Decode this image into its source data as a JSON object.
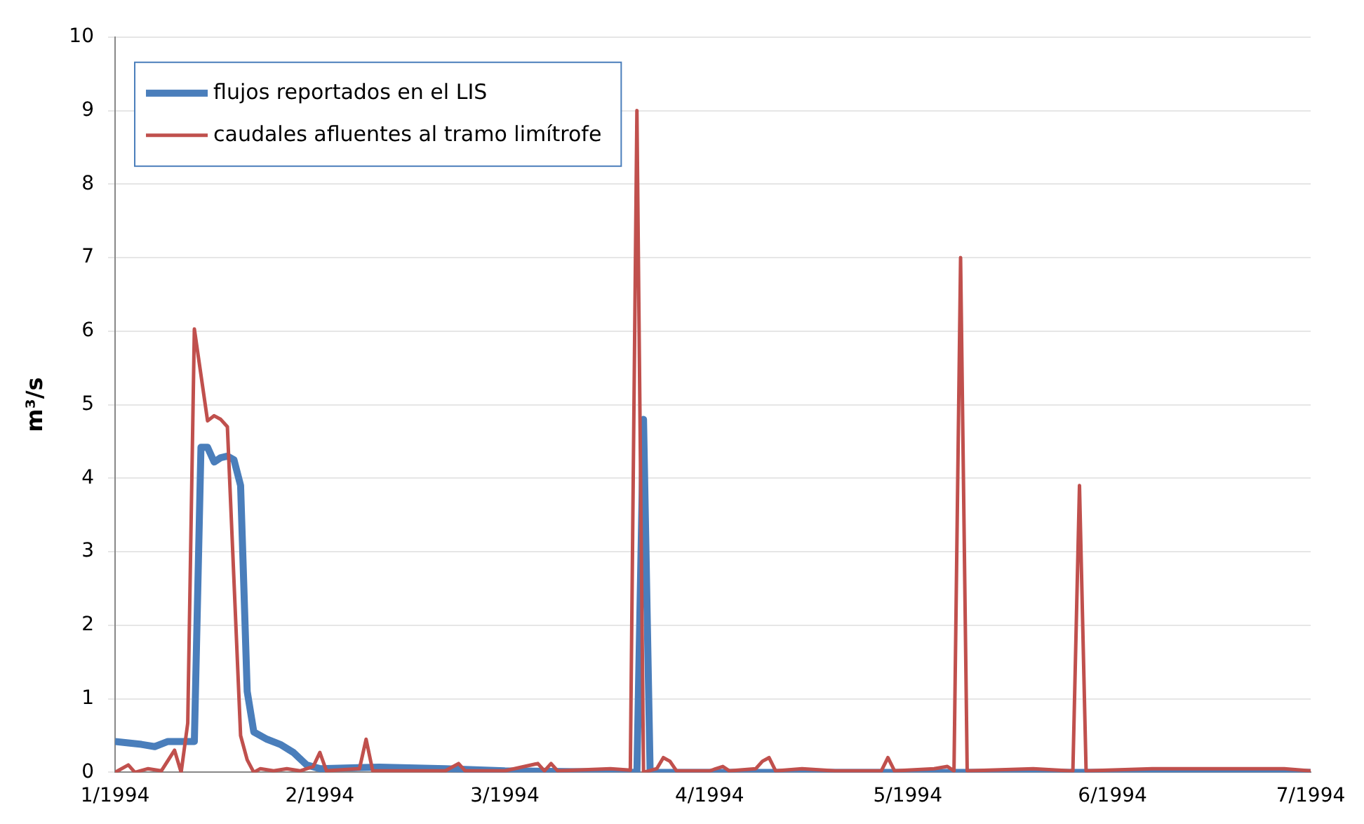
{
  "chart_data": {
    "type": "line",
    "ylabel": "m³/s",
    "xlim": [
      "1994-01-01",
      "1994-07-01"
    ],
    "xticks": [
      {
        "value": "1994-01-01",
        "label": "1/1994"
      },
      {
        "value": "1994-02-01",
        "label": "2/1994"
      },
      {
        "value": "1994-03-01",
        "label": "3/1994"
      },
      {
        "value": "1994-04-01",
        "label": "4/1994"
      },
      {
        "value": "1994-05-01",
        "label": "5/1994"
      },
      {
        "value": "1994-06-01",
        "label": "6/1994"
      },
      {
        "value": "1994-07-01",
        "label": "7/1994"
      }
    ],
    "ylim": [
      0,
      10
    ],
    "yticks": [
      0,
      1,
      2,
      3,
      4,
      5,
      6,
      7,
      8,
      9,
      10
    ],
    "grid": "y",
    "legend": "top left",
    "marker": "none",
    "line_style": "solid",
    "series": [
      {
        "name": "flujos reportados en el LIS",
        "color": "#4a7ebb",
        "x": [
          "1994-01-01",
          "1994-01-03",
          "1994-01-05",
          "1994-01-07",
          "1994-01-09",
          "1994-01-13",
          "1994-01-14",
          "1994-01-15",
          "1994-01-16",
          "1994-01-17",
          "1994-01-18",
          "1994-01-19",
          "1994-01-20",
          "1994-01-21",
          "1994-01-22",
          "1994-01-24",
          "1994-01-26",
          "1994-01-28",
          "1994-01-30",
          "1994-02-01",
          "1994-02-10",
          "1994-02-20",
          "1994-03-01",
          "1994-03-21",
          "1994-03-22",
          "1994-03-23",
          "1994-07-01"
        ],
        "values": [
          0.42,
          0.4,
          0.38,
          0.35,
          0.42,
          0.42,
          4.42,
          4.42,
          4.22,
          4.28,
          4.3,
          4.25,
          3.9,
          1.1,
          0.55,
          0.45,
          0.38,
          0.27,
          0.1,
          0.05,
          0.07,
          0.05,
          0.02,
          0,
          4.8,
          0,
          0
        ]
      },
      {
        "name": "caudales afluentes al tramo limítrofe",
        "color": "#c0504d",
        "x": [
          "1994-01-01",
          "1994-01-03",
          "1994-01-04",
          "1994-01-06",
          "1994-01-08",
          "1994-01-10",
          "1994-01-11",
          "1994-01-12",
          "1994-01-13",
          "1994-01-15",
          "1994-01-16",
          "1994-01-17",
          "1994-01-18",
          "1994-01-20",
          "1994-01-21",
          "1994-01-22",
          "1994-01-23",
          "1994-01-25",
          "1994-01-27",
          "1994-01-29",
          "1994-01-31",
          "1994-02-01",
          "1994-02-02",
          "1994-02-07",
          "1994-02-08",
          "1994-02-09",
          "1994-02-20",
          "1994-02-22",
          "1994-02-23",
          "1994-03-01",
          "1994-03-06",
          "1994-03-07",
          "1994-03-08",
          "1994-03-09",
          "1994-03-17",
          "1994-03-20",
          "1994-03-21",
          "1994-03-22",
          "1994-03-24",
          "1994-03-25",
          "1994-03-26",
          "1994-03-27",
          "1994-04-01",
          "1994-04-03",
          "1994-04-04",
          "1994-04-08",
          "1994-04-09",
          "1994-04-10",
          "1994-04-11",
          "1994-04-15",
          "1994-04-20",
          "1994-04-27",
          "1994-04-28",
          "1994-04-29",
          "1994-05-05",
          "1994-05-07",
          "1994-05-08",
          "1994-05-09",
          "1994-05-10",
          "1994-05-20",
          "1994-05-26",
          "1994-05-27",
          "1994-05-28",
          "1994-06-07",
          "1994-06-20",
          "1994-06-27",
          "1994-07-01"
        ],
        "values": [
          0,
          0.1,
          0,
          0.05,
          0.02,
          0.3,
          0,
          0.67,
          6.03,
          4.78,
          4.85,
          4.8,
          4.7,
          0.5,
          0.17,
          0,
          0.05,
          0.02,
          0.05,
          0.02,
          0.08,
          0.27,
          0.02,
          0.05,
          0.45,
          0.02,
          0.02,
          0.12,
          0.02,
          0.02,
          0.12,
          0.02,
          0.12,
          0.02,
          0.05,
          0.03,
          9.0,
          0,
          0.05,
          0.2,
          0.15,
          0.02,
          0.02,
          0.08,
          0.02,
          0.05,
          0.15,
          0.2,
          0.02,
          0.05,
          0.02,
          0.02,
          0.2,
          0.02,
          0.05,
          0.08,
          0.02,
          7.0,
          0.02,
          0.05,
          0.02,
          3.9,
          0.02,
          0.05,
          0.05,
          0.05,
          0.02
        ]
      }
    ]
  }
}
